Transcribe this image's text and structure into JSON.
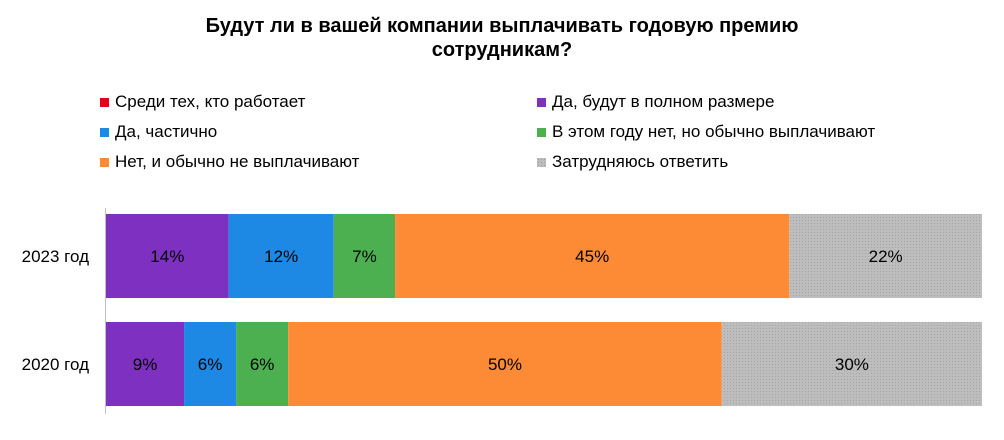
{
  "chart_data": {
    "type": "bar",
    "orientation": "horizontal",
    "stacked": "100%",
    "title": "Будут ли в вашей компании выплачивать годовую премию сотрудникам?",
    "title_lines": [
      "Будут ли в вашей компании выплачивать годовую премию",
      "сотрудникам?"
    ],
    "categories": [
      "2023 год",
      "2020 год"
    ],
    "legend": [
      {
        "name": "Среди тех, кто работает",
        "color": "#e3001b"
      },
      {
        "name": "Да, будут в полном размере",
        "color": "#7e30c0"
      },
      {
        "name": "Да, частично",
        "color": "#1e88e5"
      },
      {
        "name": "В этом году нет, но обычно выплачивают",
        "color": "#4caf50"
      },
      {
        "name": "Нет, и обычно не выплачивают",
        "color": "#fd8a35"
      },
      {
        "name": "Затрудняюсь ответить",
        "color": "#bdbdbd"
      }
    ],
    "series": [
      {
        "name": "Да, будут в полном размере",
        "color": "#7e30c0",
        "values": [
          14,
          9
        ],
        "labels": [
          "14%",
          "9%"
        ]
      },
      {
        "name": "Да, частично",
        "color": "#1e88e5",
        "values": [
          12,
          6
        ],
        "labels": [
          "12%",
          "6%"
        ]
      },
      {
        "name": "В этом году нет, но обычно выплачивают",
        "color": "#4caf50",
        "values": [
          7,
          6
        ],
        "labels": [
          "7%",
          "6%"
        ]
      },
      {
        "name": "Нет, и обычно не выплачивают",
        "color": "#fd8a35",
        "values": [
          45,
          50
        ],
        "labels": [
          "45%",
          "50%"
        ]
      },
      {
        "name": "Затрудняюсь ответить",
        "color": "#bdbdbd",
        "values": [
          22,
          30
        ],
        "labels": [
          "22%",
          "30%"
        ]
      }
    ],
    "legend_position": "top",
    "grid": false
  }
}
